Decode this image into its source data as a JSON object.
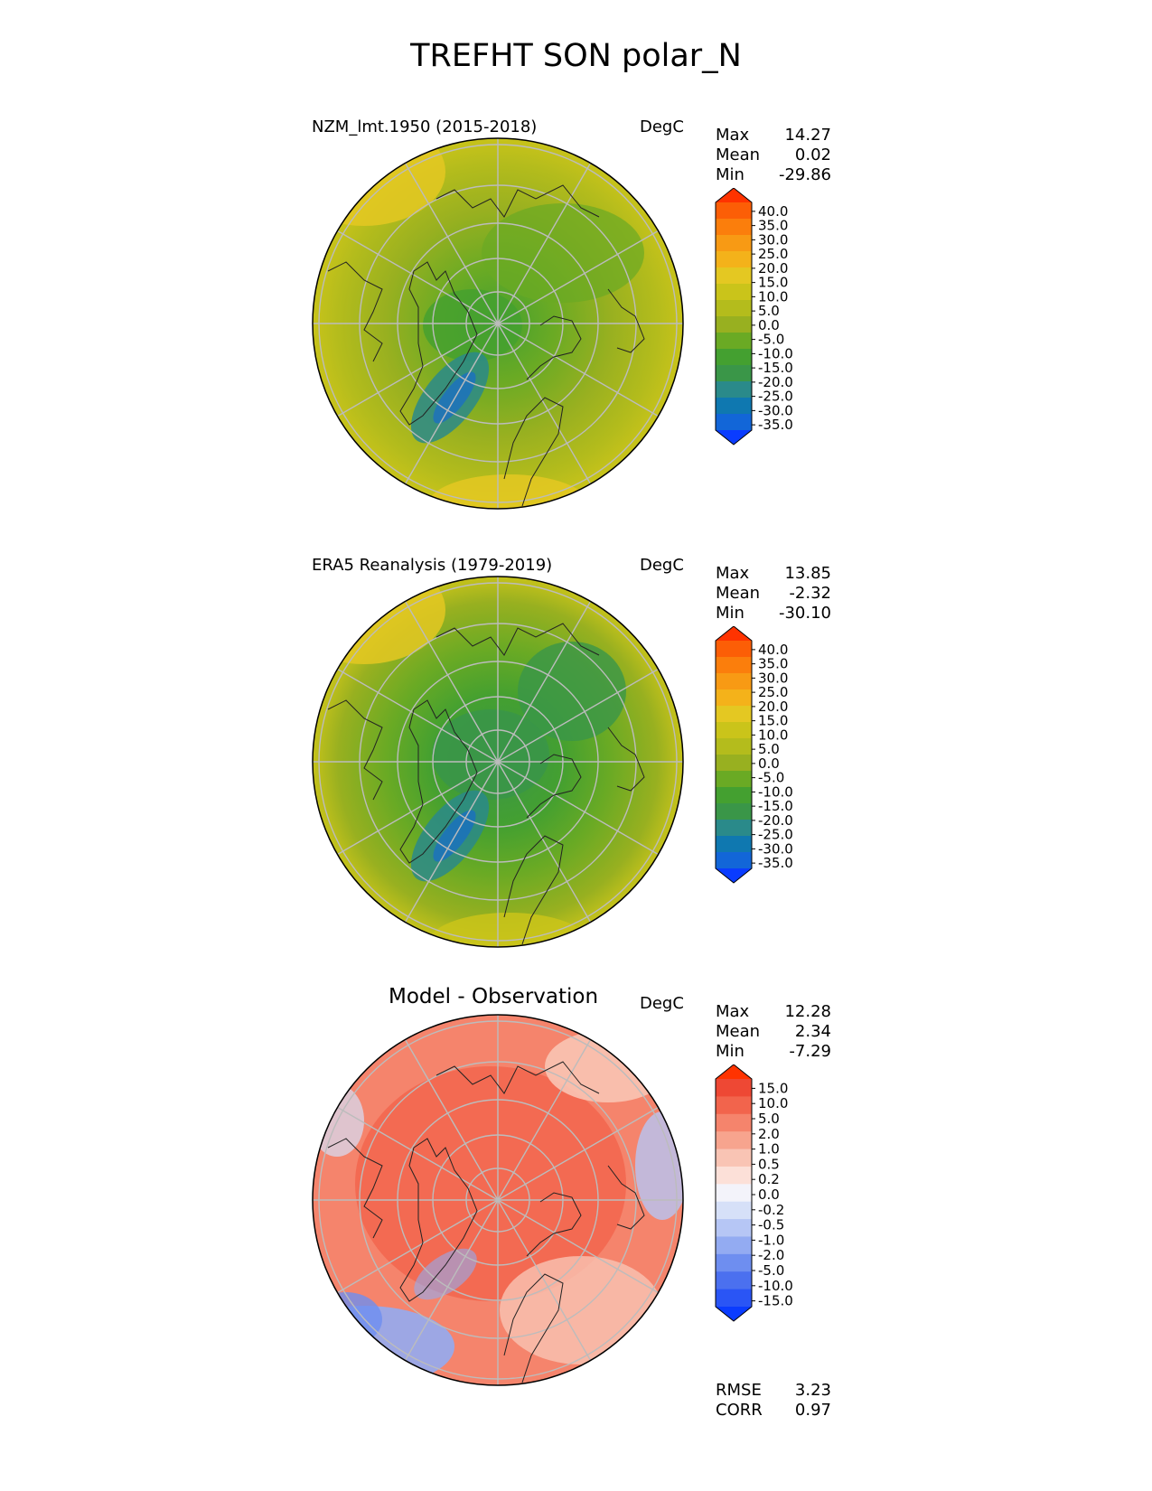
{
  "figure": {
    "title": "TREFHT SON polar_N"
  },
  "panels": [
    {
      "title": "NZM_lmt.1950 (2015-2018)",
      "units": "DegC",
      "stats": {
        "max_label": "Max",
        "max": "14.27",
        "mean_label": "Mean",
        "mean": "0.02",
        "min_label": "Min",
        "min": "-29.86"
      },
      "colorbar": {
        "levels": [
          -35,
          -30,
          -25,
          -20,
          -15,
          -10,
          -5,
          0,
          5,
          10,
          15,
          20,
          25,
          30,
          35,
          40
        ],
        "labels": [
          "40.0",
          "35.0",
          "30.0",
          "25.0",
          "20.0",
          "15.0",
          "10.0",
          "5.0",
          "0.0",
          "-5.0",
          "-10.0",
          "-15.0",
          "-20.0",
          "-25.0",
          "-30.0",
          "-35.0"
        ],
        "colors": [
          "#0a3cff",
          "#1266d8",
          "#0f78b0",
          "#2a8a8a",
          "#3a9648",
          "#44a030",
          "#6aaa24",
          "#98b020",
          "#b4bc1c",
          "#cac41a",
          "#e4c822",
          "#f4b21a",
          "#f89a14",
          "#fb7e0c",
          "#fc5e06",
          "#ff3300"
        ],
        "extend": "both"
      }
    },
    {
      "title": "ERA5 Reanalysis (1979-2019)",
      "units": "DegC",
      "stats": {
        "max_label": "Max",
        "max": "13.85",
        "mean_label": "Mean",
        "mean": "-2.32",
        "min_label": "Min",
        "min": "-30.10"
      },
      "colorbar": {
        "levels": [
          -35,
          -30,
          -25,
          -20,
          -15,
          -10,
          -5,
          0,
          5,
          10,
          15,
          20,
          25,
          30,
          35,
          40
        ],
        "labels": [
          "40.0",
          "35.0",
          "30.0",
          "25.0",
          "20.0",
          "15.0",
          "10.0",
          "5.0",
          "0.0",
          "-5.0",
          "-10.0",
          "-15.0",
          "-20.0",
          "-25.0",
          "-30.0",
          "-35.0"
        ],
        "colors": [
          "#0a3cff",
          "#1266d8",
          "#0f78b0",
          "#2a8a8a",
          "#3a9648",
          "#44a030",
          "#6aaa24",
          "#98b020",
          "#b4bc1c",
          "#cac41a",
          "#e4c822",
          "#f4b21a",
          "#f89a14",
          "#fb7e0c",
          "#fc5e06",
          "#ff3300"
        ],
        "extend": "both"
      }
    },
    {
      "title": "Model - Observation",
      "units": "DegC",
      "stats": {
        "max_label": "Max",
        "max": "12.28",
        "mean_label": "Mean",
        "mean": "2.34",
        "min_label": "Min",
        "min": "-7.29"
      },
      "colorbar": {
        "levels": [
          -15,
          -10,
          -5,
          -2,
          -1,
          -0.5,
          -0.2,
          0,
          0.2,
          0.5,
          1,
          2,
          5,
          10,
          15
        ],
        "labels": [
          "15.0",
          "10.0",
          "5.0",
          "2.0",
          "1.0",
          "0.5",
          "0.2",
          "0.0",
          "-0.2",
          "-0.5",
          "-1.0",
          "-2.0",
          "-5.0",
          "-10.0",
          "-15.0"
        ],
        "colors": [
          "#0a3cff",
          "#2a55f5",
          "#4b70ef",
          "#6e8ef0",
          "#93abf2",
          "#b6c6f5",
          "#d6e0f8",
          "#f3f3fa",
          "#fce0d8",
          "#f9c4b4",
          "#f7a48e",
          "#f5846c",
          "#f2644c",
          "#ee4834",
          "#ff3300"
        ],
        "extend": "both"
      }
    }
  ],
  "summary": {
    "rmse_label": "RMSE",
    "rmse": "3.23",
    "corr_label": "CORR",
    "corr": "0.97"
  },
  "chart_data": [
    {
      "type": "heatmap",
      "projection": "north-polar-stereographic",
      "title": "NZM_lmt.1950 (2015-2018)",
      "units": "DegC",
      "max": 14.27,
      "mean": 0.02,
      "min": -29.86,
      "value_range": [
        -35,
        40
      ]
    },
    {
      "type": "heatmap",
      "projection": "north-polar-stereographic",
      "title": "ERA5 Reanalysis (1979-2019)",
      "units": "DegC",
      "max": 13.85,
      "mean": -2.32,
      "min": -30.1,
      "value_range": [
        -35,
        40
      ]
    },
    {
      "type": "heatmap",
      "projection": "north-polar-stereographic",
      "title": "Model - Observation",
      "units": "DegC",
      "max": 12.28,
      "mean": 2.34,
      "min": -7.29,
      "value_range": [
        -15,
        15
      ],
      "rmse": 3.23,
      "corr": 0.97
    }
  ]
}
